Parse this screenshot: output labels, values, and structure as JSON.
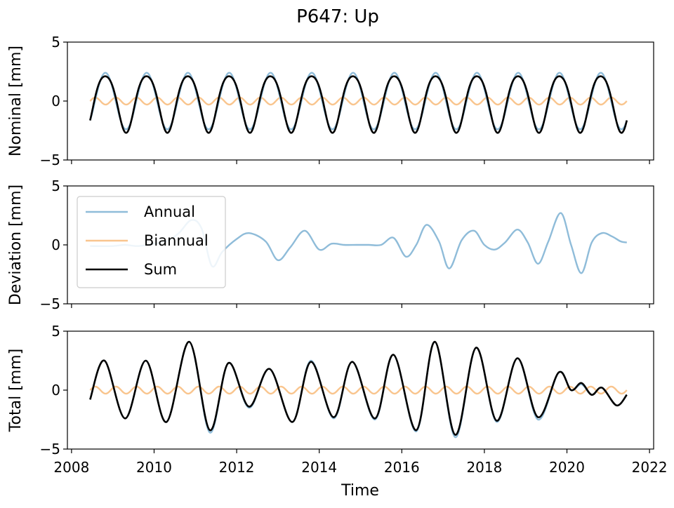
{
  "figure": {
    "title": "P647: Up",
    "xlabel": "Time",
    "panel_ylabels": [
      "Nominal [mm]",
      "Deviation [mm]",
      "Total [mm]"
    ],
    "x_ticks": [
      "2008",
      "2010",
      "2012",
      "2014",
      "2016",
      "2018",
      "2020",
      "2022"
    ],
    "y_ticks": [
      "5",
      "0",
      "−5"
    ],
    "legend": [
      "Annual",
      "Biannual",
      "Sum"
    ]
  },
  "colors": {
    "annual": "#8fbcd9",
    "biannual": "#f9c58e",
    "sum": "#000000"
  },
  "chart_data": [
    {
      "type": "line",
      "title": "P647: Up",
      "ylabel": "Nominal [mm]",
      "xlim": [
        2007.9,
        2022.1
      ],
      "ylim": [
        -5,
        5
      ],
      "x_range": [
        2008.45,
        2021.45
      ],
      "series": [
        {
          "name": "Annual",
          "model": "2.4*sin(2*pi*(t-2008.57))"
        },
        {
          "name": "Biannual",
          "model": "0.3*sin(4*pi*(t-2008.45))"
        },
        {
          "name": "Sum",
          "model": "Annual + Biannual"
        }
      ]
    },
    {
      "type": "line",
      "ylabel": "Deviation [mm]",
      "xlim": [
        2007.9,
        2022.1
      ],
      "ylim": [
        -5,
        5
      ],
      "legend_position": "upper-left",
      "series": [
        {
          "name": "Annual",
          "x": [
            2008.45,
            2009.0,
            2009.3,
            2009.6,
            2010.0,
            2010.3,
            2010.6,
            2010.9,
            2011.15,
            2011.4,
            2011.65,
            2012.0,
            2012.3,
            2012.7,
            2013.0,
            2013.3,
            2013.65,
            2014.0,
            2014.3,
            2014.6,
            2014.9,
            2015.2,
            2015.5,
            2015.8,
            2016.1,
            2016.35,
            2016.6,
            2016.9,
            2017.15,
            2017.45,
            2017.75,
            2018.0,
            2018.25,
            2018.5,
            2018.8,
            2019.05,
            2019.3,
            2019.55,
            2019.85,
            2020.1,
            2020.35,
            2020.6,
            2020.85,
            2021.1,
            2021.3,
            2021.45
          ],
          "y": [
            -0.1,
            -0.1,
            0.0,
            -0.1,
            0.1,
            0.3,
            1.0,
            2.1,
            1.4,
            -1.8,
            -0.6,
            0.5,
            1.0,
            0.3,
            -1.3,
            -0.2,
            1.2,
            -0.4,
            0.1,
            0.0,
            0.0,
            0.0,
            0.0,
            0.6,
            -1.0,
            0.0,
            1.7,
            0.3,
            -2.0,
            0.4,
            1.2,
            0.0,
            -0.4,
            0.2,
            1.3,
            0.2,
            -1.6,
            0.3,
            2.7,
            0.0,
            -2.4,
            0.2,
            1.0,
            0.7,
            0.3,
            0.2
          ]
        }
      ]
    },
    {
      "type": "line",
      "ylabel": "Total [mm]",
      "xlabel": "Time",
      "xlim": [
        2007.9,
        2022.1
      ],
      "ylim": [
        -5,
        5
      ],
      "series": [
        {
          "name": "Annual",
          "x": [
            2008.45,
            2008.8,
            2009.3,
            2009.8,
            2010.3,
            2010.85,
            2011.35,
            2011.8,
            2012.3,
            2012.8,
            2013.35,
            2013.8,
            2014.35,
            2014.8,
            2015.35,
            2015.8,
            2016.35,
            2016.8,
            2017.3,
            2017.8,
            2018.3,
            2018.8,
            2019.3,
            2019.8,
            2020.1,
            2020.35,
            2020.6,
            2020.85,
            2021.2,
            2021.45
          ],
          "y": [
            -0.8,
            2.5,
            -2.4,
            2.5,
            -2.7,
            4.1,
            -3.6,
            2.3,
            -1.5,
            1.8,
            -2.7,
            2.5,
            -2.4,
            2.4,
            -2.5,
            3.0,
            -3.5,
            4.1,
            -4.0,
            3.6,
            -2.7,
            2.7,
            -2.5,
            1.5,
            0.0,
            0.5,
            -0.4,
            0.2,
            -1.3,
            -0.4
          ]
        },
        {
          "name": "Biannual",
          "model": "0.3*sin(4*pi*(t-2008.45))"
        },
        {
          "name": "Sum",
          "x": [
            2008.45,
            2008.8,
            2009.3,
            2009.8,
            2010.3,
            2010.85,
            2011.35,
            2011.8,
            2012.3,
            2012.8,
            2013.35,
            2013.8,
            2014.35,
            2014.8,
            2015.35,
            2015.8,
            2016.35,
            2016.8,
            2017.3,
            2017.8,
            2018.3,
            2018.8,
            2019.3,
            2019.8,
            2020.1,
            2020.35,
            2020.6,
            2020.85,
            2021.2,
            2021.45
          ],
          "y": [
            -0.8,
            2.5,
            -2.4,
            2.5,
            -2.7,
            4.1,
            -3.4,
            2.3,
            -1.4,
            1.8,
            -2.7,
            2.4,
            -2.3,
            2.4,
            -2.4,
            3.0,
            -3.4,
            4.1,
            -3.8,
            3.6,
            -2.6,
            2.7,
            -2.3,
            1.5,
            0.0,
            0.6,
            -0.4,
            0.2,
            -1.3,
            -0.4
          ]
        }
      ]
    }
  ]
}
